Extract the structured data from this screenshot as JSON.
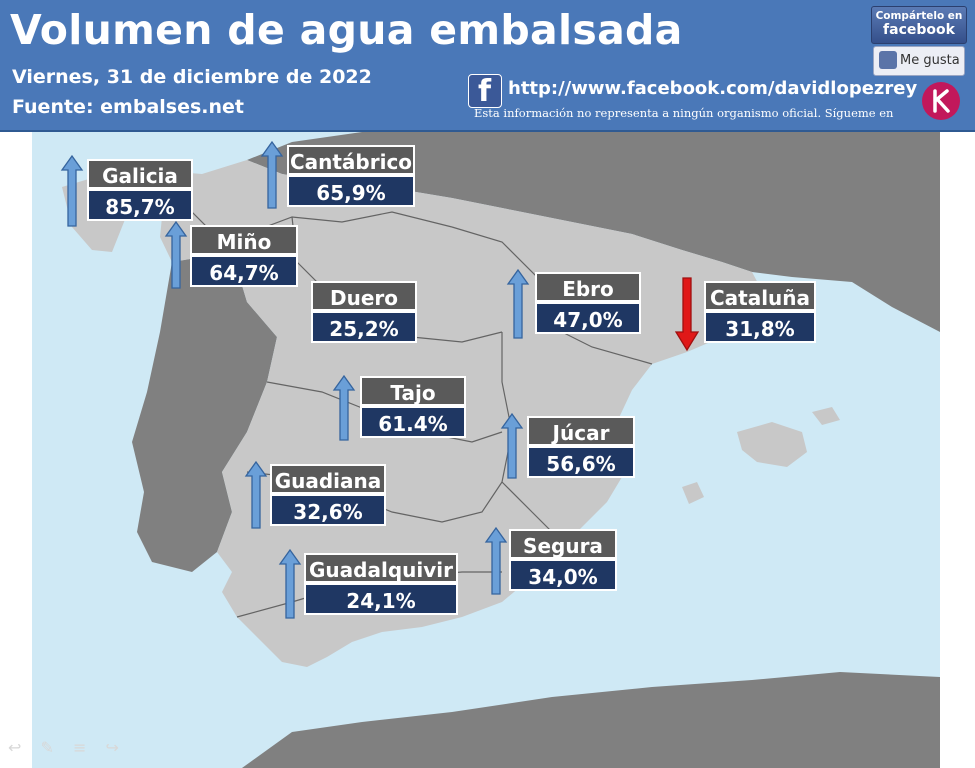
{
  "header": {
    "title": "Volumen de agua embalsada",
    "date": "Viernes, 31 de diciembre de 2022",
    "source": "Fuente:  embalses.net",
    "fb_url": "http://www.facebook.com/davidlopezrey",
    "disclaimer": "Esta información no representa a ningún organismo oficial. Sígueme en",
    "share_line1": "Compártelo en",
    "share_line2": "facebook",
    "like_label": "Me gusta",
    "fb_icon_letter": "f"
  },
  "basins": [
    {
      "name": "Galicia",
      "value": "85,7%",
      "trend": "up"
    },
    {
      "name": "Cantábrico",
      "value": "65,9%",
      "trend": "up"
    },
    {
      "name": "Miño",
      "value": "64,7%",
      "trend": "up"
    },
    {
      "name": "Duero",
      "value": "25,2%",
      "trend": "none"
    },
    {
      "name": "Ebro",
      "value": "47,0%",
      "trend": "up"
    },
    {
      "name": "Cataluña",
      "value": "31,8%",
      "trend": "down"
    },
    {
      "name": "Tajo",
      "value": "61.4%",
      "trend": "up"
    },
    {
      "name": "Júcar",
      "value": "56,6%",
      "trend": "up"
    },
    {
      "name": "Guadiana",
      "value": "32,6%",
      "trend": "up"
    },
    {
      "name": "Segura",
      "value": "34,0%",
      "trend": "up"
    },
    {
      "name": "Guadalquivir",
      "value": "24,1%",
      "trend": "up"
    }
  ],
  "colors": {
    "header_bg": "#4a78b8",
    "sea": "#cfe9f5",
    "spain_land": "#c8c8c8",
    "other_land": "#808080",
    "name_box": "#5a5a5a",
    "value_box": "#1f3763",
    "arrow_up": "#6a9fd8",
    "arrow_down": "#e01818"
  },
  "icons": [
    "facebook-icon",
    "like-thumb-icon",
    "author-logo-icon",
    "nav-prev-icon",
    "nav-pen-icon",
    "nav-menu-icon",
    "nav-next-icon"
  ]
}
